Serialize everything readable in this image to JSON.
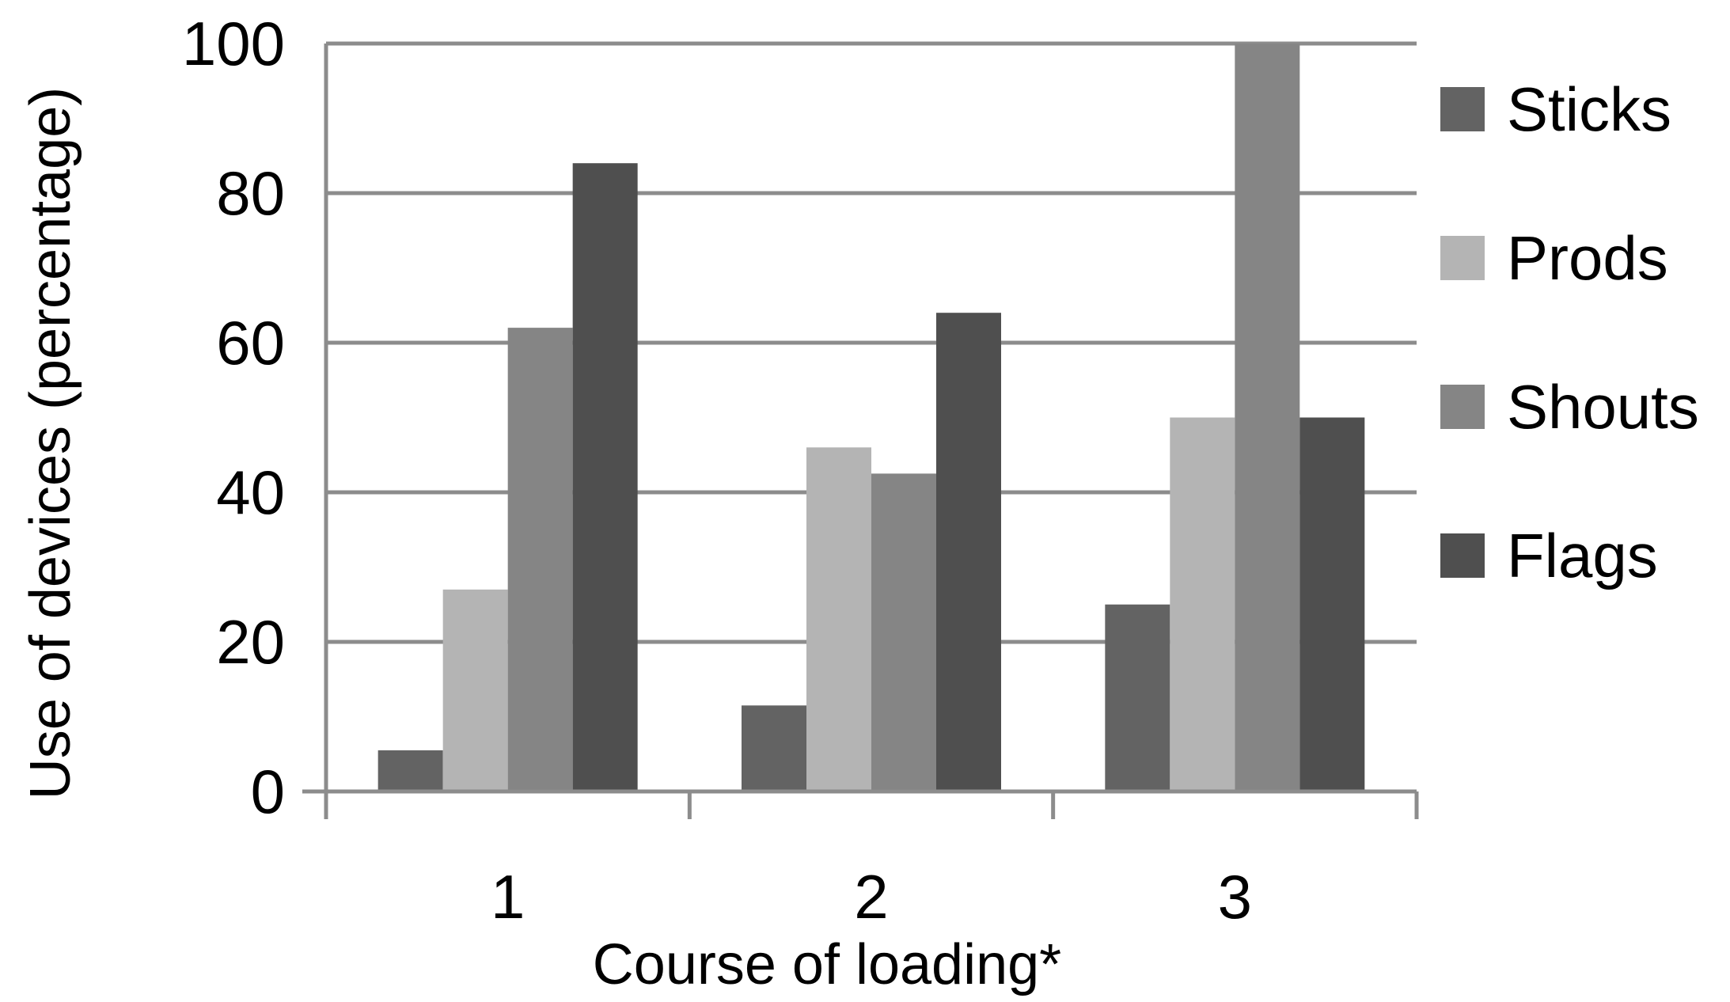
{
  "chart_data": {
    "type": "bar",
    "categories": [
      "1",
      "2",
      "3"
    ],
    "series": [
      {
        "name": "Sticks",
        "values": [
          5.5,
          11.5,
          25
        ],
        "color": "#636363"
      },
      {
        "name": "Prods",
        "values": [
          27,
          46,
          50
        ],
        "color": "#b4b4b4"
      },
      {
        "name": "Shouts",
        "values": [
          62,
          42.5,
          100
        ],
        "color": "#858585"
      },
      {
        "name": "Flags",
        "values": [
          84,
          64,
          50
        ],
        "color": "#4f4f4f"
      }
    ],
    "title": "",
    "xlabel": "Course of loading*",
    "ylabel": "Use of devices (percentage)",
    "ylim": [
      0,
      100
    ],
    "yticks": [
      "0",
      "20",
      "40",
      "60",
      "80",
      "100"
    ],
    "grid": true,
    "legend": "right"
  }
}
